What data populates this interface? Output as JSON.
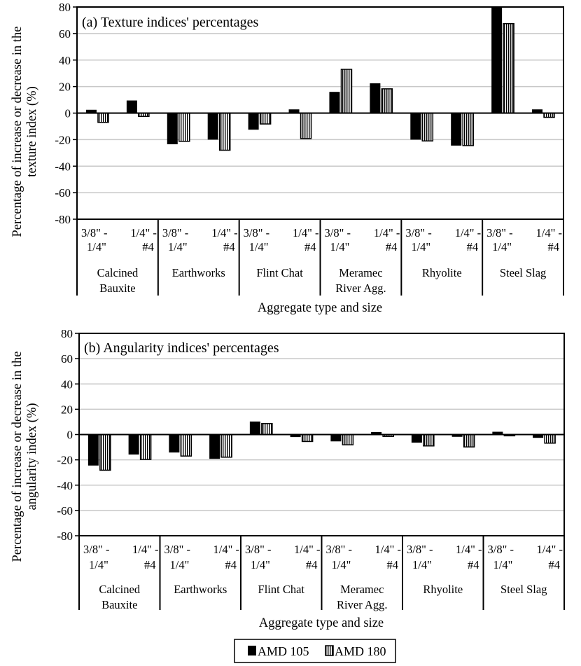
{
  "chart_data": [
    {
      "type": "bar",
      "title": "(a) Texture indices' percentages",
      "xlabel": "Aggregate type and size",
      "ylabel_lines": [
        "Percentage of increase or decrease in the",
        "texture index (%)"
      ],
      "ylim": [
        -80,
        80
      ],
      "yticks": [
        80,
        60,
        40,
        20,
        0,
        -20,
        -40,
        -60,
        -80
      ],
      "grid": true,
      "groups": [
        {
          "name_lines": [
            "Calcined",
            "Bauxite"
          ],
          "sizes": [
            [
              "3/8\" -",
              "1/4\""
            ],
            [
              "1/4\" -",
              "#4"
            ]
          ]
        },
        {
          "name_lines": [
            "Earthworks"
          ],
          "sizes": [
            [
              "3/8\" -",
              "1/4\""
            ],
            [
              "1/4\" -",
              "#4"
            ]
          ]
        },
        {
          "name_lines": [
            "Flint Chat"
          ],
          "sizes": [
            [
              "3/8\" -",
              "1/4\""
            ],
            [
              "1/4\" -",
              "#4"
            ]
          ]
        },
        {
          "name_lines": [
            "Meramec",
            "River Agg."
          ],
          "sizes": [
            [
              "3/8\" -",
              "1/4\""
            ],
            [
              "1/4\" -",
              "#4"
            ]
          ]
        },
        {
          "name_lines": [
            "Rhyolite"
          ],
          "sizes": [
            [
              "3/8\" -",
              "1/4\""
            ],
            [
              "1/4\" -",
              "#4"
            ]
          ]
        },
        {
          "name_lines": [
            "Steel Slag"
          ],
          "sizes": [
            [
              "3/8\" -",
              "1/4\""
            ],
            [
              "1/4\" -",
              "#4"
            ]
          ]
        }
      ],
      "series": [
        {
          "name": "AMD 105",
          "pattern": "solid",
          "values": [
            2.5,
            9.5,
            -23.5,
            -20,
            -12.5,
            2.8,
            16,
            22.5,
            -20,
            -24.5,
            80,
            2.8
          ]
        },
        {
          "name": "AMD 180",
          "pattern": "vertical-stripes",
          "values": [
            -7,
            -2.5,
            -21.3,
            -28,
            -8.2,
            -19.2,
            33,
            18.3,
            -21,
            -24.5,
            67.5,
            -3.2
          ]
        }
      ]
    },
    {
      "type": "bar",
      "title": "(b) Angularity indices' percentages",
      "xlabel": "Aggregate type and size",
      "ylabel_lines": [
        "Percentage of increase or decrease in the",
        "angularity index (%)"
      ],
      "ylim": [
        -80,
        80
      ],
      "yticks": [
        80,
        60,
        40,
        20,
        0,
        -20,
        -40,
        -60,
        -80
      ],
      "grid": true,
      "groups": [
        {
          "name_lines": [
            "Calcined",
            "Bauxite"
          ],
          "sizes": [
            [
              "3/8\" -",
              "1/4\""
            ],
            [
              "1/4\" -",
              "#4"
            ]
          ]
        },
        {
          "name_lines": [
            "Earthworks"
          ],
          "sizes": [
            [
              "3/8\" -",
              "1/4\""
            ],
            [
              "1/4\" -",
              "#4"
            ]
          ]
        },
        {
          "name_lines": [
            "Flint Chat"
          ],
          "sizes": [
            [
              "3/8\" -",
              "1/4\""
            ],
            [
              "1/4\" -",
              "#4"
            ]
          ]
        },
        {
          "name_lines": [
            "Meramec",
            "River Agg."
          ],
          "sizes": [
            [
              "3/8\" -",
              "1/4\""
            ],
            [
              "1/4\" -",
              "#4"
            ]
          ]
        },
        {
          "name_lines": [
            "Rhyolite"
          ],
          "sizes": [
            [
              "3/8\" -",
              "1/4\""
            ],
            [
              "1/4\" -",
              "#4"
            ]
          ]
        },
        {
          "name_lines": [
            "Steel Slag"
          ],
          "sizes": [
            [
              "3/8\" -",
              "1/4\""
            ],
            [
              "1/4\" -",
              "#4"
            ]
          ]
        }
      ],
      "series": [
        {
          "name": "AMD 105",
          "pattern": "solid",
          "values": [
            -24.5,
            -15.8,
            -14.2,
            -19.2,
            10.3,
            -2,
            -5.4,
            2,
            -6.4,
            -1.8,
            2.2,
            -2.6
          ]
        },
        {
          "name": "AMD 180",
          "pattern": "vertical-stripes",
          "values": [
            -28.2,
            -19.7,
            -17,
            -17.9,
            8.7,
            -5.5,
            -8.1,
            -1.5,
            -9,
            -9.8,
            -1,
            -6.8
          ]
        }
      ]
    }
  ],
  "legend": {
    "placement": "bottom-center",
    "items": [
      {
        "label": "AMD 105",
        "pattern": "solid"
      },
      {
        "label": "AMD 180",
        "pattern": "vertical-stripes"
      }
    ]
  },
  "colors": {
    "bar_fill": "#000000",
    "grid": "#c8c8c8",
    "axis": "#000000",
    "background": "#ffffff"
  }
}
